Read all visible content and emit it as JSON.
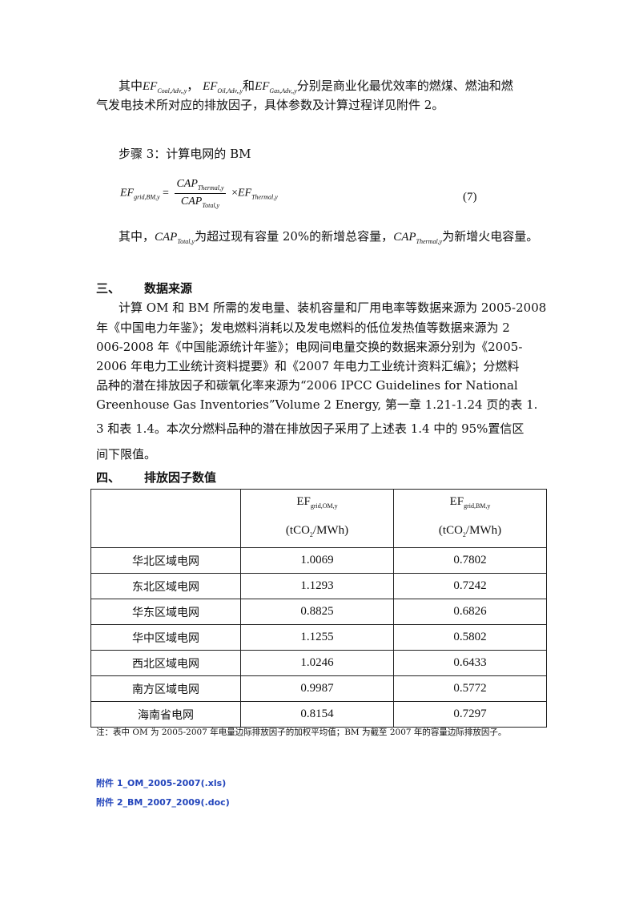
{
  "para1": {
    "line1_prefix": "其中",
    "ef_coal": "EF",
    "ef_coal_sub": "Coal,Adv,,y",
    "sep1": "，",
    "ef_oil": "EF",
    "ef_oil_sub": "Oil,Adv,,y",
    "and": "和",
    "ef_gas": "EF",
    "ef_gas_sub": "Gas,Adv,,y",
    "line1_suffix": "分别是商业化最优效率的燃煤、燃油和燃",
    "line2": "气发电技术所对应的排放因子，具体参数及计算过程详见附件 2。"
  },
  "step3": {
    "title": "步骤 3：计算电网的 BM",
    "formula": {
      "lhs": "EF",
      "lhs_sub": "grid,BM,y",
      "eq": "=",
      "num": "CAP",
      "num_sub": "Thermal,y",
      "den": "CAP",
      "den_sub": "Total,y",
      "times": "×",
      "rhs": "EF",
      "rhs_sub": "Thermal,y",
      "number": "(7)"
    },
    "where_prefix": "其中，",
    "cap_total": "CAP",
    "cap_total_sub": "Total,y",
    "where_mid": "为超过现有容量 20%的新增总容量，",
    "cap_thermal": "CAP",
    "cap_thermal_sub": "Thermal,y",
    "where_suffix": "为新增火电容量。"
  },
  "section3": {
    "num": "三、",
    "title": "数据来源",
    "lines": [
      "计算 OM 和 BM 所需的发电量、装机容量和厂用电率等数据来源为 2005-2008",
      "年《中国电力年鉴》；发电燃料消耗以及发电燃料的低位发热值等数据来源为 2",
      "006-2008 年《中国能源统计年鉴》；电网间电量交换的数据来源分别为《2005-",
      "2006 年电力工业统计资料提要》和《2007 年电力工业统计资料汇编》；分燃料",
      "品种的潜在排放因子和碳氧化率来源为“2006 IPCC Guidelines for National",
      "Greenhouse Gas Inventories”Volume 2 Energy, 第一章 1.21-1.24 页的表 1.",
      "3 和表 1.4。本次分燃料品种的潜在排放因子采用了上述表 1.4 中的 95%置信区",
      "间下限值。"
    ]
  },
  "section4": {
    "num": "四、",
    "title": "排放因子数值"
  },
  "table": {
    "headers": [
      {
        "main": "",
        "sub": "",
        "unit": ""
      },
      {
        "main": "EF",
        "sub": "grid,OM,y",
        "unit_pre": "(tCO",
        "unit_sub": "2",
        "unit_post": "/MWh)"
      },
      {
        "main": "EF",
        "sub": "grid,BM,y",
        "unit_pre": "(tCO",
        "unit_sub": "2",
        "unit_post": "/MWh)"
      }
    ],
    "rows": [
      [
        "华北区域电网",
        "1.0069",
        "0.7802"
      ],
      [
        "东北区域电网",
        "1.1293",
        "0.7242"
      ],
      [
        "华东区域电网",
        "0.8825",
        "0.6826"
      ],
      [
        "华中区域电网",
        "1.1255",
        "0.5802"
      ],
      [
        "西北区域电网",
        "1.0246",
        "0.6433"
      ],
      [
        "南方区域电网",
        "0.9987",
        "0.5772"
      ],
      [
        "海南省电网",
        "0.8154",
        "0.7297"
      ]
    ]
  },
  "note": "注：表中 OM 为 2005-2007 年电量边际排放因子的加权平均值；BM 为截至 2007 年的容量边际排放因子。",
  "attachments": [
    "附件 1_OM_2005-2007(.xls)",
    "附件 2_BM_2007_2009(.doc)"
  ],
  "colors": {
    "link": "#2244bb"
  }
}
